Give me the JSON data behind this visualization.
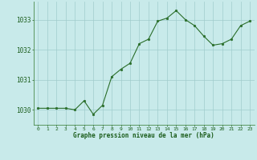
{
  "x": [
    0,
    1,
    2,
    3,
    4,
    5,
    6,
    7,
    8,
    9,
    10,
    11,
    12,
    13,
    14,
    15,
    16,
    17,
    18,
    19,
    20,
    21,
    22,
    23
  ],
  "y": [
    1030.05,
    1030.05,
    1030.05,
    1030.05,
    1030.0,
    1030.3,
    1029.85,
    1030.15,
    1031.1,
    1031.35,
    1031.55,
    1032.2,
    1032.35,
    1032.95,
    1033.05,
    1033.3,
    1033.0,
    1032.8,
    1032.45,
    1032.15,
    1032.2,
    1032.35,
    1032.8,
    1032.95
  ],
  "line_color": "#2a6e2a",
  "marker_color": "#2a6e2a",
  "bg_color": "#c8eaea",
  "grid_color": "#a0cccc",
  "label_color": "#1a5c1a",
  "xlabel": "Graphe pression niveau de la mer (hPa)",
  "yticks": [
    1030,
    1031,
    1032,
    1033
  ],
  "xticks": [
    0,
    1,
    2,
    3,
    4,
    5,
    6,
    7,
    8,
    9,
    10,
    11,
    12,
    13,
    14,
    15,
    16,
    17,
    18,
    19,
    20,
    21,
    22,
    23
  ],
  "ylim": [
    1029.5,
    1033.6
  ],
  "xlim": [
    -0.5,
    23.5
  ],
  "tick_color": "#1a5c1a",
  "spine_color": "#4a8a4a"
}
